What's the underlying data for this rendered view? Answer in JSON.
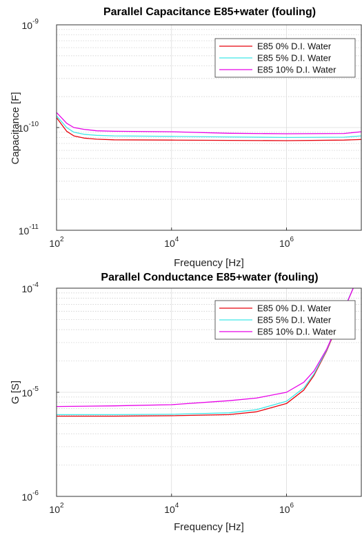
{
  "chart_data": [
    {
      "type": "line",
      "title": "Parallel Capacitance E85+water (fouling)",
      "xlabel": "Frequency [Hz]",
      "ylabel": "Capacitance [F]",
      "xscale": "log",
      "yscale": "log",
      "xlim": [
        100,
        20000000
      ],
      "ylim": [
        1e-11,
        1e-09
      ],
      "xticks": [
        {
          "value": 100,
          "base": "10",
          "exp": "2"
        },
        {
          "value": 10000,
          "base": "10",
          "exp": "4"
        },
        {
          "value": 1000000,
          "base": "10",
          "exp": "6"
        }
      ],
      "yticks": [
        {
          "value": 1e-11,
          "base": "10",
          "exp": "-11"
        },
        {
          "value": 1e-10,
          "base": "10",
          "exp": "-10"
        },
        {
          "value": 1e-09,
          "base": "10",
          "exp": "-9"
        }
      ],
      "grid": true,
      "legend_position": "top-right",
      "series": [
        {
          "name": "E85 0% D.I. Water",
          "color": "#e8000b",
          "x": [
            100,
            150,
            200,
            300,
            500,
            1000,
            10000,
            100000,
            1000000,
            10000000,
            20000000
          ],
          "y": [
            1.25e-10,
            9.2e-11,
            8.3e-11,
            7.9e-11,
            7.7e-11,
            7.6e-11,
            7.55e-11,
            7.5e-11,
            7.45e-11,
            7.55e-11,
            7.65e-11
          ]
        },
        {
          "name": "E85 5% D.I. Water",
          "color": "#3ee6e6",
          "x": [
            100,
            150,
            200,
            300,
            500,
            1000,
            10000,
            100000,
            1000000,
            10000000,
            20000000
          ],
          "y": [
            1.3e-10,
            1e-10,
            9e-11,
            8.6e-11,
            8.4e-11,
            8.3e-11,
            8.2e-11,
            8.1e-11,
            8e-11,
            8.05e-11,
            8.3e-11
          ]
        },
        {
          "name": "E85 10% D.I. Water",
          "color": "#e800e8",
          "x": [
            100,
            150,
            200,
            300,
            500,
            1000,
            10000,
            100000,
            1000000,
            10000000,
            20000000
          ],
          "y": [
            1.4e-10,
            1.1e-10,
            1e-10,
            9.6e-11,
            9.3e-11,
            9.2e-11,
            9.1e-11,
            8.8e-11,
            8.7e-11,
            8.75e-11,
            9.1e-11
          ]
        }
      ]
    },
    {
      "type": "line",
      "title": "Parallel Conductance E85+water (fouling)",
      "xlabel": "Frequency [Hz]",
      "ylabel": "G [S]",
      "xscale": "log",
      "yscale": "log",
      "xlim": [
        100,
        20000000
      ],
      "ylim": [
        1e-06,
        0.0001
      ],
      "xticks": [
        {
          "value": 100,
          "base": "10",
          "exp": "2"
        },
        {
          "value": 10000,
          "base": "10",
          "exp": "4"
        },
        {
          "value": 1000000,
          "base": "10",
          "exp": "6"
        }
      ],
      "yticks": [
        {
          "value": 1e-06,
          "base": "10",
          "exp": "-6"
        },
        {
          "value": 1e-05,
          "base": "10",
          "exp": "-5"
        },
        {
          "value": 0.0001,
          "base": "10",
          "exp": "-4"
        }
      ],
      "grid": true,
      "legend_position": "top-right",
      "series": [
        {
          "name": "E85 0% D.I. Water",
          "color": "#e8000b",
          "x": [
            100,
            1000,
            10000,
            100000,
            300000,
            1000000,
            2000000,
            3000000,
            5000000,
            10000000,
            15000000
          ],
          "y": [
            5.9e-06,
            5.9e-06,
            5.95e-06,
            6.1e-06,
            6.5e-06,
            7.8e-06,
            1.05e-05,
            1.45e-05,
            2.5e-05,
            6.2e-05,
            0.000105
          ]
        },
        {
          "name": "E85 5% D.I. Water",
          "color": "#3ee6e6",
          "x": [
            100,
            1000,
            10000,
            100000,
            300000,
            1000000,
            2000000,
            3000000,
            5000000,
            10000000,
            15000000
          ],
          "y": [
            6.1e-06,
            6.1e-06,
            6.15e-06,
            6.35e-06,
            6.8e-06,
            8.2e-06,
            1.1e-05,
            1.5e-05,
            2.55e-05,
            6.3e-05,
            0.000105
          ]
        },
        {
          "name": "E85 10% D.I. Water",
          "color": "#e800e8",
          "x": [
            100,
            1000,
            10000,
            100000,
            300000,
            1000000,
            2000000,
            3000000,
            5000000,
            10000000,
            15000000
          ],
          "y": [
            7.3e-06,
            7.4e-06,
            7.6e-06,
            8.3e-06,
            8.8e-06,
            1e-05,
            1.25e-05,
            1.6e-05,
            2.6e-05,
            6.2e-05,
            0.000105
          ]
        }
      ]
    }
  ]
}
